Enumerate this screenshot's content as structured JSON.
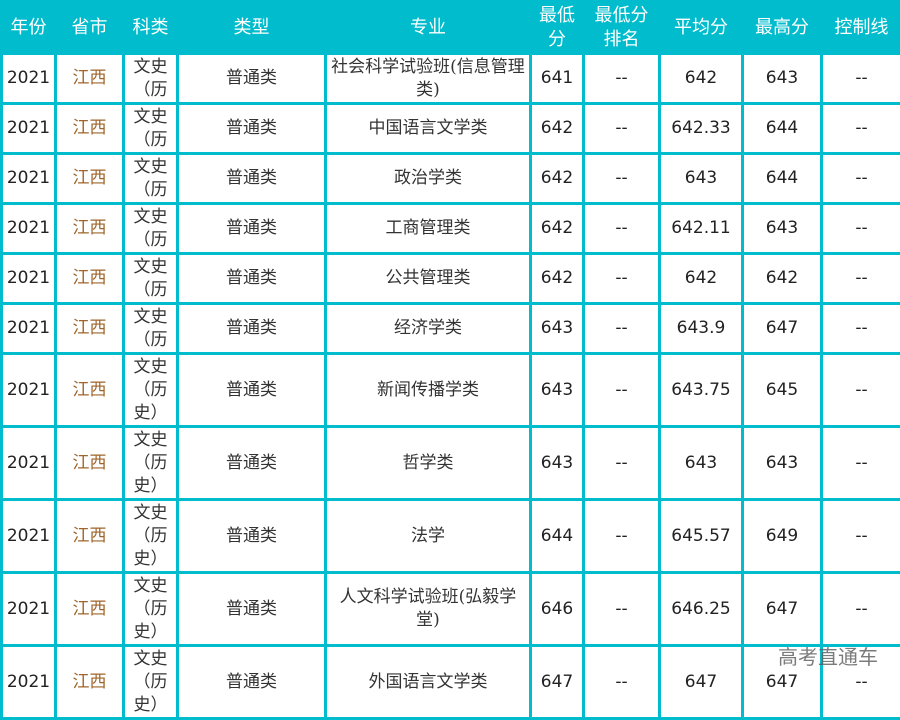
{
  "table": {
    "headers": [
      "年份",
      "省市",
      "科类",
      "类型",
      "专业",
      "最低分",
      "最低分排名",
      "平均分",
      "最高分",
      "控制线"
    ],
    "rows": [
      [
        "2021",
        "江西",
        "文史（历",
        "普通类",
        "社会科学试验班(信息管理类)",
        "641",
        "--",
        "642",
        "643",
        "--"
      ],
      [
        "2021",
        "江西",
        "文史（历",
        "普通类",
        "中国语言文学类",
        "642",
        "--",
        "642.33",
        "644",
        "--"
      ],
      [
        "2021",
        "江西",
        "文史（历",
        "普通类",
        "政治学类",
        "642",
        "--",
        "643",
        "644",
        "--"
      ],
      [
        "2021",
        "江西",
        "文史（历",
        "普通类",
        "工商管理类",
        "642",
        "--",
        "642.11",
        "643",
        "--"
      ],
      [
        "2021",
        "江西",
        "文史（历",
        "普通类",
        "公共管理类",
        "642",
        "--",
        "642",
        "642",
        "--"
      ],
      [
        "2021",
        "江西",
        "文史（历",
        "普通类",
        "经济学类",
        "643",
        "--",
        "643.9",
        "647",
        "--"
      ],
      [
        "2021",
        "江西",
        "文史（历史）",
        "普通类",
        "新闻传播学类",
        "643",
        "--",
        "643.75",
        "645",
        "--"
      ],
      [
        "2021",
        "江西",
        "文史（历史）",
        "普通类",
        "哲学类",
        "643",
        "--",
        "643",
        "643",
        "--"
      ],
      [
        "2021",
        "江西",
        "文史（历史）",
        "普通类",
        "法学",
        "644",
        "--",
        "645.57",
        "649",
        "--"
      ],
      [
        "2021",
        "江西",
        "文史（历史）",
        "普通类",
        "人文科学试验班(弘毅学堂)",
        "646",
        "--",
        "646.25",
        "647",
        "--"
      ],
      [
        "2021",
        "江西",
        "文史（历史）",
        "普通类",
        "外国语言文学类",
        "647",
        "--",
        "647",
        "647",
        "--"
      ]
    ]
  },
  "watermark": "高考直通车",
  "colors": {
    "accent": "#00bccd",
    "province": "#a0642a"
  }
}
